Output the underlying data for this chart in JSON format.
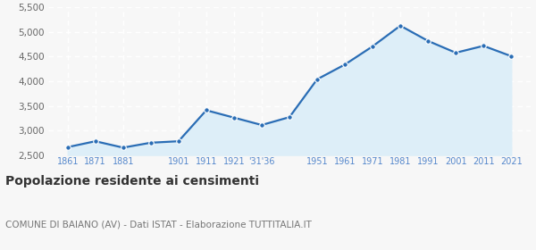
{
  "x_positions": [
    1861,
    1871,
    1881,
    1891,
    1901,
    1911,
    1921,
    1931,
    1941,
    1951,
    1961,
    1971,
    1981,
    1991,
    2001,
    2011,
    2021
  ],
  "y_values": [
    2660,
    2780,
    2650,
    2750,
    2780,
    3410,
    3260,
    3110,
    3270,
    4040,
    4340,
    4710,
    5130,
    4820,
    4580,
    4720,
    4510
  ],
  "line_color": "#2a6db5",
  "fill_color": "#ddeef8",
  "marker_color": "#2a6db5",
  "background_color": "#f7f7f7",
  "grid_color": "#ffffff",
  "ylim": [
    2500,
    5500
  ],
  "yticks": [
    2500,
    3000,
    3500,
    4000,
    4500,
    5000,
    5500
  ],
  "title": "Popolazione residente ai censimenti",
  "subtitle": "COMUNE DI BAIANO (AV) - Dati ISTAT - Elaborazione TUTTITALIA.IT",
  "title_fontsize": 10,
  "subtitle_fontsize": 7.5,
  "tick_label_color": "#5588cc",
  "ytick_label_color": "#666666",
  "xlim_left": 1854,
  "xlim_right": 2028
}
